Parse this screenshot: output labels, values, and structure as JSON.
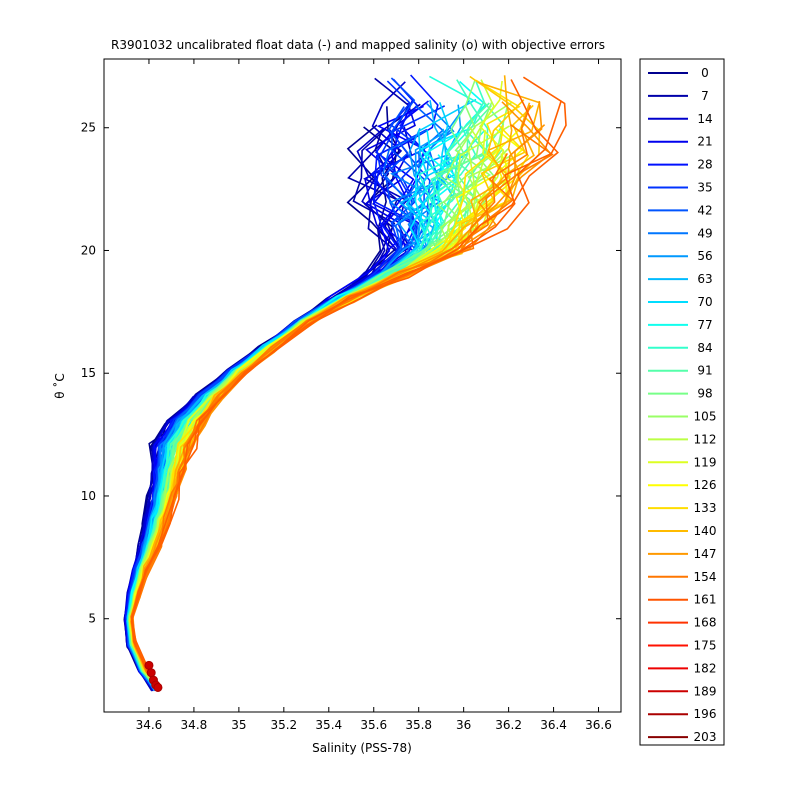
{
  "chart_data": {
    "type": "line",
    "title": "R3901032 uncalibrated float data (-) and mapped salinity (o) with objective errors",
    "xlabel": "Salinity (PSS-78)",
    "ylabel": "θ ˚C",
    "xlim": [
      34.4,
      36.7
    ],
    "ylim": [
      1.2,
      27.8
    ],
    "xticks": [
      34.6,
      34.8,
      35,
      35.2,
      35.4,
      35.6,
      35.8,
      36,
      36.2,
      36.4,
      36.6
    ],
    "xtick_labels": [
      "34.6",
      "34.8",
      "35",
      "35.2",
      "35.4",
      "35.6",
      "35.8",
      "36",
      "36.2",
      "36.4",
      "36.6"
    ],
    "yticks": [
      5,
      10,
      15,
      20,
      25
    ],
    "ytick_labels": [
      "5",
      "10",
      "15",
      "20",
      "25"
    ],
    "grid": false,
    "legend_position": "outside-right",
    "colormap": "jet",
    "legend": [
      {
        "label": "0",
        "color": "#00008f"
      },
      {
        "label": "7",
        "color": "#0000a9"
      },
      {
        "label": "14",
        "color": "#0000c4"
      },
      {
        "label": "21",
        "color": "#0000df"
      },
      {
        "label": "28",
        "color": "#0000f9"
      },
      {
        "label": "35",
        "color": "#0016ff"
      },
      {
        "label": "42",
        "color": "#0030ff"
      },
      {
        "label": "49",
        "color": "#004bff"
      },
      {
        "label": "56",
        "color": "#0066ff"
      },
      {
        "label": "63",
        "color": "#0080ff"
      },
      {
        "label": "70",
        "color": "#009bff"
      },
      {
        "label": "77",
        "color": "#00b6ff"
      },
      {
        "label": "84",
        "color": "#00d0ff"
      },
      {
        "label": "91",
        "color": "#00ebff"
      },
      {
        "label": "98",
        "color": "#07fff8"
      },
      {
        "label": "105",
        "color": "#22ffdd"
      },
      {
        "label": "112",
        "color": "#3cffc3"
      },
      {
        "label": "119",
        "color": "#57ffa8"
      },
      {
        "label": "126",
        "color": "#71ff8e"
      },
      {
        "label": "133",
        "color": "#8cff73"
      },
      {
        "label": "140",
        "color": "#a6ff59"
      },
      {
        "label": "147",
        "color": "#c1ff3e"
      },
      {
        "label": "154",
        "color": "#dbff24"
      },
      {
        "label": "161",
        "color": "#f6ff09"
      },
      {
        "label": "168",
        "color": "#ffe400"
      },
      {
        "label": "175",
        "color": "#ffc900"
      },
      {
        "label": "182",
        "color": "#ffaf00"
      },
      {
        "label": "189",
        "color": "#ff9400"
      },
      {
        "label": "196",
        "color": "#ff7a00"
      },
      {
        "label": "203",
        "color": "#ff5f00"
      }
    ],
    "legend_colors_displayed": [
      "#00008f",
      "#0000aa",
      "#0000cc",
      "#0000ee",
      "#0010ff",
      "#0033ff",
      "#0055ff",
      "#0077ff",
      "#0099ff",
      "#00bbff",
      "#00ddff",
      "#11ffee",
      "#33ffcc",
      "#55ffaa",
      "#77ff88",
      "#99ff66",
      "#bbff44",
      "#ddff22",
      "#ffff00",
      "#ffdd00",
      "#ffbb00",
      "#ff9900",
      "#ff7700",
      "#ff5500",
      "#ff3300",
      "#ff1100",
      "#ee0000",
      "#cc0000",
      "#aa0000",
      "#880000"
    ],
    "series_note_colors": "profiles colored by profile number (jet colormap), early profiles blue, late profiles dark red",
    "envelope": {
      "theta": [
        2.2,
        3.0,
        4.0,
        5.0,
        6.0,
        7.0,
        8.0,
        9.0,
        10.0,
        11.0,
        12.0,
        13.0,
        14.0,
        15.0,
        16.0,
        17.0,
        18.0,
        19.0,
        20.0,
        21.0,
        22.0,
        23.0,
        24.0,
        25.0,
        26.0,
        27.0
      ],
      "s_mean": [
        34.63,
        34.57,
        34.52,
        34.51,
        34.53,
        34.56,
        34.6,
        34.63,
        34.66,
        34.68,
        34.7,
        34.76,
        34.86,
        34.98,
        35.12,
        35.27,
        35.45,
        35.65,
        35.82,
        35.85,
        35.87,
        35.88,
        35.92,
        35.95,
        35.98,
        35.9
      ],
      "s_spread": [
        0.02,
        0.02,
        0.02,
        0.02,
        0.03,
        0.04,
        0.05,
        0.06,
        0.07,
        0.08,
        0.1,
        0.09,
        0.07,
        0.05,
        0.04,
        0.04,
        0.06,
        0.1,
        0.2,
        0.3,
        0.38,
        0.42,
        0.45,
        0.45,
        0.4,
        0.35
      ]
    },
    "mapped_salinity_points": [
      {
        "s": 34.6,
        "theta": 3.1
      },
      {
        "s": 34.61,
        "theta": 2.8
      },
      {
        "s": 34.62,
        "theta": 2.5
      },
      {
        "s": 34.63,
        "theta": 2.3
      },
      {
        "s": 34.64,
        "theta": 2.2
      }
    ]
  }
}
